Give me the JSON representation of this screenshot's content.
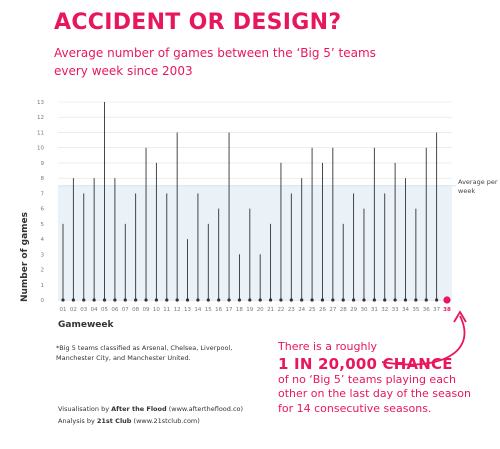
{
  "header": {
    "title": "ACCIDENT OR DESIGN?",
    "subtitle": "Average number of games between the ‘Big 5’ teams every week since 2003"
  },
  "legend": {
    "average_label": "Average per week"
  },
  "footnote": "*Big 5 teams classified as Arsenal, Chelsea, Liverpool, Manchester City, and Manchester United.",
  "credits": {
    "visualisation_prefix": "Visualisation by ",
    "visualisation_name": "After the Flood",
    "visualisation_url": " (www.aftertheflood.co)",
    "analysis_prefix": "Analysis by ",
    "analysis_name": "21st Club",
    "analysis_url": " (www.21stclub.com)"
  },
  "callout": {
    "line1": "There is a roughly",
    "big": "1 IN 20,000 CHANCE",
    "line3": "of no ‘Big 5’ teams playing each other on the last day of the season for 14 consecutive seasons."
  },
  "colors": {
    "accent": "#e8175d",
    "stem": "#333333",
    "average_band": "#eaf1f7",
    "grid": "#e2e2e2"
  },
  "chart_data": {
    "type": "lollipop",
    "title": "ACCIDENT OR DESIGN?",
    "subtitle": "Average number of games between the ‘Big 5’ teams every week since 2003",
    "xlabel": "Gameweek",
    "ylabel": "Number of games",
    "ylim": [
      0,
      13
    ],
    "y_ticks": [
      0,
      1,
      2,
      3,
      4,
      5,
      6,
      7,
      8,
      9,
      10,
      11,
      12,
      13
    ],
    "average_band_upper": 7.5,
    "grid": true,
    "categories": [
      "01",
      "02",
      "03",
      "04",
      "05",
      "06",
      "07",
      "08",
      "09",
      "10",
      "11",
      "12",
      "13",
      "14",
      "15",
      "16",
      "17",
      "18",
      "19",
      "20",
      "21",
      "22",
      "23",
      "24",
      "25",
      "26",
      "27",
      "28",
      "29",
      "30",
      "31",
      "32",
      "33",
      "34",
      "35",
      "36",
      "37",
      "38"
    ],
    "values": [
      5,
      8,
      7,
      8,
      13,
      8,
      5,
      7,
      10,
      9,
      7,
      11,
      4,
      7,
      5,
      6,
      11,
      3,
      6,
      3,
      5,
      9,
      7,
      8,
      10,
      9,
      10,
      5,
      7,
      6,
      10,
      7,
      9,
      8,
      6,
      10,
      11,
      0
    ],
    "highlight_category": "38"
  }
}
